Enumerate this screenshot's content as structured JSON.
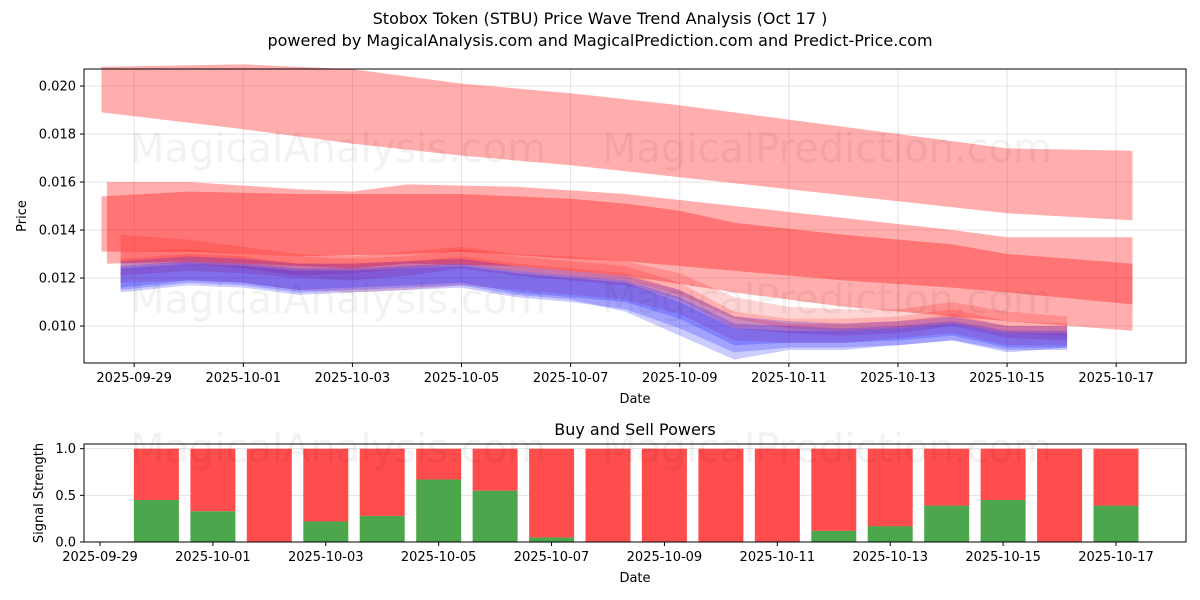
{
  "header": {
    "title": "Stobox Token (STBU) Price Wave Trend Analysis (Oct 17 )",
    "subtitle": "powered by MagicalAnalysis.com and MagicalPrediction.com and Predict-Price.com"
  },
  "watermarks": [
    "MagicalAnalysis.com",
    "MagicalPrediction.com"
  ],
  "chart_data": [
    {
      "type": "area",
      "title": "",
      "xlabel": "Date",
      "ylabel": "Price",
      "x_ticks": [
        "2025-09-29",
        "2025-10-01",
        "2025-10-03",
        "2025-10-05",
        "2025-10-07",
        "2025-10-09",
        "2025-10-11",
        "2025-10-13",
        "2025-10-15",
        "2025-10-17"
      ],
      "y_ticks": [
        "0.010",
        "0.012",
        "0.014",
        "0.016",
        "0.018",
        "0.020"
      ],
      "ylim": [
        0.00846,
        0.02071
      ],
      "xlim_days_from_2025_09_29": [
        -0.92,
        19.28
      ],
      "grid": true,
      "colors": {
        "sell_band": "#ff0000",
        "buy_band": "#0000ff",
        "wave_mix": "#7b45d6"
      },
      "bands": [
        {
          "name": "upper-forecast-band",
          "color": "#ff0000",
          "opacity": 0.32,
          "x": [
            -0.6,
            2,
            4,
            6,
            8,
            10,
            12,
            14,
            16,
            18.3
          ],
          "upper": [
            0.0208,
            0.0209,
            0.0207,
            0.0201,
            0.0197,
            0.0192,
            0.0186,
            0.018,
            0.0174,
            0.0173
          ],
          "lower": [
            0.0189,
            0.0182,
            0.0176,
            0.0171,
            0.0167,
            0.0162,
            0.0157,
            0.0152,
            0.0147,
            0.0144
          ]
        },
        {
          "name": "mid-forecast-band-outer",
          "color": "#ff0000",
          "opacity": 0.32,
          "x": [
            -0.5,
            1,
            3,
            4,
            5,
            7,
            9,
            11,
            13,
            15,
            16,
            18.3
          ],
          "upper": [
            0.016,
            0.016,
            0.0157,
            0.0156,
            0.0159,
            0.0158,
            0.0155,
            0.015,
            0.0145,
            0.014,
            0.0137,
            0.0137
          ],
          "lower": [
            0.0126,
            0.0127,
            0.0125,
            0.0124,
            0.0126,
            0.0125,
            0.0121,
            0.0114,
            0.0108,
            0.0104,
            0.0102,
            0.0098
          ]
        },
        {
          "name": "mid-forecast-band-inner",
          "color": "#ff0000",
          "opacity": 0.32,
          "x": [
            -0.6,
            1,
            3,
            5,
            6,
            8,
            9,
            10,
            11,
            13,
            15,
            16,
            18.3
          ],
          "upper": [
            0.0154,
            0.0156,
            0.0155,
            0.0155,
            0.0155,
            0.0153,
            0.0151,
            0.0148,
            0.0143,
            0.0138,
            0.0134,
            0.013,
            0.0126
          ],
          "lower": [
            0.0131,
            0.0131,
            0.0129,
            0.013,
            0.0131,
            0.0128,
            0.0127,
            0.0125,
            0.0123,
            0.0119,
            0.0116,
            0.0114,
            0.0109
          ]
        }
      ],
      "waves": {
        "x": [
          -0.25,
          1,
          2,
          3,
          4,
          5,
          6,
          7,
          8,
          9,
          10,
          11,
          12,
          13,
          14,
          15,
          16,
          17.1
        ],
        "series": [
          {
            "name": "wave-1",
            "color": "#ff0000",
            "upper": [
              0.0138,
              0.0136,
              0.0133,
              0.013,
              0.0129,
              0.0131,
              0.0133,
              0.013,
              0.0129,
              0.0127,
              0.0122,
              0.0112,
              0.0108,
              0.0107,
              0.0107,
              0.011,
              0.0106,
              0.0104
            ],
            "lower": [
              0.0126,
              0.0126,
              0.0124,
              0.0121,
              0.0122,
              0.0124,
              0.0126,
              0.0123,
              0.0121,
              0.0119,
              0.0113,
              0.0103,
              0.0099,
              0.0098,
              0.0099,
              0.0101,
              0.0097,
              0.0096
            ]
          },
          {
            "name": "wave-2",
            "color": "#ff0000",
            "upper": [
              0.0131,
              0.0132,
              0.013,
              0.0129,
              0.0128,
              0.0129,
              0.0132,
              0.0129,
              0.0127,
              0.0125,
              0.0118,
              0.0106,
              0.0103,
              0.0103,
              0.0104,
              0.0107,
              0.0102,
              0.0101
            ],
            "lower": [
              0.0121,
              0.0123,
              0.0122,
              0.012,
              0.0119,
              0.0121,
              0.0124,
              0.0121,
              0.0119,
              0.0117,
              0.0111,
              0.0099,
              0.0097,
              0.0096,
              0.0097,
              0.01,
              0.0095,
              0.0094
            ]
          },
          {
            "name": "wave-3",
            "color": "#ff0000",
            "upper": [
              0.0128,
              0.013,
              0.0129,
              0.0126,
              0.0126,
              0.0127,
              0.0129,
              0.0126,
              0.0124,
              0.0122,
              0.0115,
              0.0104,
              0.0101,
              0.0101,
              0.0102,
              0.0105,
              0.01,
              0.01
            ],
            "lower": [
              0.0118,
              0.0119,
              0.0118,
              0.0115,
              0.0114,
              0.0115,
              0.0117,
              0.0115,
              0.0113,
              0.0111,
              0.0105,
              0.0094,
              0.0093,
              0.0093,
              0.0095,
              0.0097,
              0.0092,
              0.0092
            ]
          },
          {
            "name": "wave-4",
            "color": "#0000ff",
            "upper": [
              0.0127,
              0.0129,
              0.0128,
              0.0126,
              0.0126,
              0.0127,
              0.0128,
              0.0125,
              0.0123,
              0.0121,
              0.0115,
              0.0104,
              0.0102,
              0.0101,
              0.0102,
              0.0104,
              0.01,
              0.01
            ],
            "lower": [
              0.0116,
              0.0119,
              0.0118,
              0.0115,
              0.0116,
              0.0117,
              0.0118,
              0.0114,
              0.0112,
              0.011,
              0.0103,
              0.0092,
              0.0093,
              0.0093,
              0.0094,
              0.0096,
              0.0091,
              0.0091
            ]
          },
          {
            "name": "wave-5",
            "color": "#0000ff",
            "upper": [
              0.0125,
              0.0127,
              0.0126,
              0.0124,
              0.0124,
              0.0125,
              0.0126,
              0.0123,
              0.0121,
              0.0119,
              0.0112,
              0.0101,
              0.01,
              0.0099,
              0.01,
              0.0102,
              0.0098,
              0.0098
            ],
            "lower": [
              0.0114,
              0.0117,
              0.0116,
              0.0113,
              0.0114,
              0.0115,
              0.0116,
              0.0112,
              0.011,
              0.0107,
              0.0099,
              0.0089,
              0.0091,
              0.0091,
              0.0092,
              0.0094,
              0.009,
              0.009
            ]
          },
          {
            "name": "wave-6",
            "color": "#0000ff",
            "upper": [
              0.0124,
              0.0126,
              0.0125,
              0.0123,
              0.0123,
              0.0124,
              0.0125,
              0.0122,
              0.012,
              0.0118,
              0.011,
              0.0099,
              0.0098,
              0.0098,
              0.0099,
              0.0101,
              0.0097,
              0.0097
            ],
            "lower": [
              0.0115,
              0.0118,
              0.0117,
              0.0114,
              0.0115,
              0.0116,
              0.0117,
              0.0113,
              0.0111,
              0.0106,
              0.0096,
              0.0086,
              0.009,
              0.009,
              0.0092,
              0.0094,
              0.0089,
              0.0091
            ]
          }
        ]
      }
    },
    {
      "type": "bar",
      "title": "Buy and Sell Powers",
      "xlabel": "Date",
      "ylabel": "Signal Strength",
      "ylim": [
        0,
        1.05
      ],
      "y_ticks": [
        "0.0",
        "0.5",
        "1.0"
      ],
      "x_ticks": [
        "2025-09-29",
        "2025-10-01",
        "2025-10-03",
        "2025-10-05",
        "2025-10-07",
        "2025-10-09",
        "2025-10-11",
        "2025-10-13",
        "2025-10-15",
        "2025-10-17"
      ],
      "grid": true,
      "categories": [
        "2025-09-30",
        "2025-10-01",
        "2025-10-02",
        "2025-10-03",
        "2025-10-04",
        "2025-10-05",
        "2025-10-06",
        "2025-10-07",
        "2025-10-08",
        "2025-10-09",
        "2025-10-10",
        "2025-10-11",
        "2025-10-12",
        "2025-10-13",
        "2025-10-14",
        "2025-10-15",
        "2025-10-16",
        "2025-10-17"
      ],
      "series": [
        {
          "name": "Buy",
          "color": "#4ca64c",
          "values": [
            0.45,
            0.33,
            0.0,
            0.22,
            0.28,
            0.67,
            0.55,
            0.05,
            0.0,
            0.0,
            0.0,
            0.0,
            0.12,
            0.17,
            0.39,
            0.45,
            0.0,
            0.39
          ]
        },
        {
          "name": "Sell",
          "color": "#ff4c4c",
          "values": [
            0.55,
            0.67,
            1.0,
            0.78,
            0.72,
            0.33,
            0.45,
            0.95,
            1.0,
            1.0,
            1.0,
            1.0,
            0.88,
            0.83,
            0.61,
            0.55,
            1.0,
            0.61
          ]
        }
      ]
    }
  ]
}
